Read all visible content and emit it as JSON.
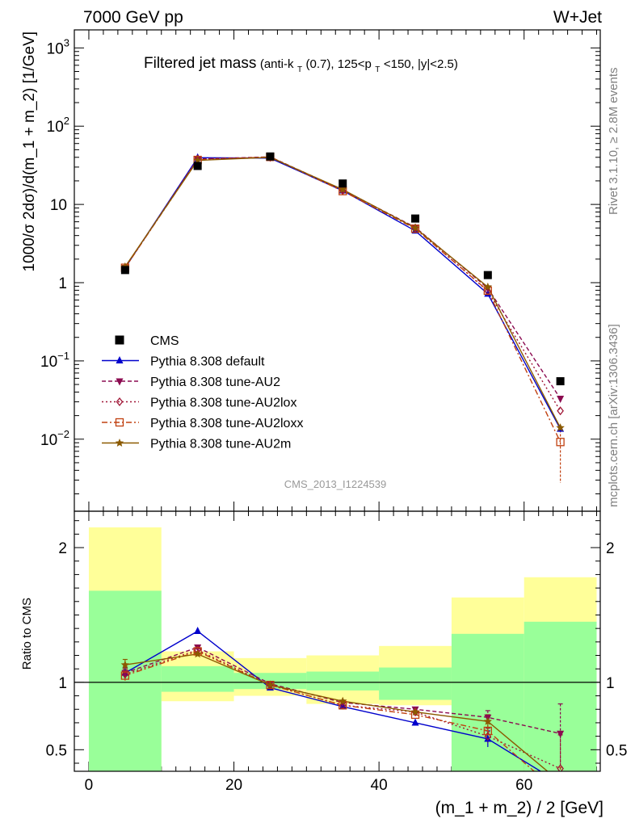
{
  "header": {
    "left": "7000 GeV pp",
    "right": "W+Jet",
    "side_rivet": "Rivet 3.1.10, ≥ 2.8M events",
    "side_mcplots": "mcplots.cern.ch [arXiv:1306.3436]"
  },
  "chart_data": {
    "type": "line",
    "title_main": "Filtered jet mass",
    "title_sub_parts": [
      "(anti-k",
      "T",
      "(0.7), 125<p",
      "T",
      "<150, |y|<2.5)"
    ],
    "analysis_label": "CMS_2013_I1224539",
    "xlabel": "(m_1 + m_2) / 2 [GeV]",
    "ylabel": "1000/σ 2dσ)/d(m_1 + m_2) [1/GeV]",
    "ratio_ylabel": "Ratio to CMS",
    "xlim": [
      -2,
      70.5
    ],
    "ylim": [
      0.0012,
      1700
    ],
    "ylog": true,
    "ratio_ylim": [
      0.34,
      2.27
    ],
    "x_ticks": [
      0,
      20,
      40,
      60
    ],
    "y_ticks": [
      {
        "value": 0.01,
        "base": "10",
        "exp": "−2"
      },
      {
        "value": 0.1,
        "base": "10",
        "exp": "−1"
      },
      {
        "value": 1,
        "base": "1",
        "exp": ""
      },
      {
        "value": 10,
        "base": "10",
        "exp": ""
      },
      {
        "value": 100,
        "base": "10",
        "exp": "2"
      },
      {
        "value": 1000,
        "base": "10",
        "exp": "3"
      }
    ],
    "ratio_ticks": [
      {
        "value": 0.5,
        "label": "0.5"
      },
      {
        "value": 1,
        "label": "1"
      },
      {
        "value": 2,
        "label": "2"
      }
    ],
    "x": [
      5,
      15,
      25,
      35,
      45,
      55,
      65
    ],
    "data": {
      "name": "CMS",
      "values": [
        1.45,
        31,
        41,
        18.5,
        6.6,
        1.25,
        0.055
      ],
      "band_edges": [
        0,
        10,
        20,
        30,
        40,
        50,
        60,
        70
      ],
      "stat_band": [
        [
          0.34,
          1.68
        ],
        [
          0.93,
          1.12
        ],
        [
          0.95,
          1.07
        ],
        [
          0.94,
          1.08
        ],
        [
          0.87,
          1.11
        ],
        [
          0.34,
          1.36
        ],
        [
          0.34,
          1.45
        ]
      ],
      "total_band": [
        [
          0.34,
          2.15
        ],
        [
          0.86,
          1.23
        ],
        [
          0.9,
          1.18
        ],
        [
          0.84,
          1.2
        ],
        [
          0.83,
          1.27
        ],
        [
          0.43,
          1.63
        ],
        [
          0.34,
          1.78
        ]
      ]
    },
    "series": [
      {
        "name": "Pythia 8.308 default",
        "color": "#0000cc",
        "dash": "",
        "marker": "triangle-up",
        "values": [
          1.55,
          39.5,
          39,
          15,
          4.6,
          0.72,
          0.0135
        ],
        "ratio": [
          1.07,
          1.38,
          0.96,
          0.82,
          0.7,
          0.58,
          0.25
        ],
        "ratio_err": [
          0.04,
          0,
          0,
          0,
          0,
          0.06,
          0
        ]
      },
      {
        "name": "Pythia 8.308 tune-AU2",
        "color": "#8b0a50",
        "dash": "5,3",
        "marker": "triangle-down",
        "values": [
          1.55,
          38,
          40.5,
          15.3,
          5.1,
          0.85,
          0.033
        ],
        "ratio": [
          1.07,
          1.26,
          0.99,
          0.85,
          0.8,
          0.74,
          0.62
        ],
        "ratio_err": [
          0.04,
          0,
          0,
          0,
          0,
          0.05,
          0.22
        ]
      },
      {
        "name": "Pythia 8.308 tune-AU2lox",
        "color": "#a01535",
        "dash": "2,3",
        "marker": "diamond",
        "values": [
          1.55,
          38,
          40,
          15,
          5.0,
          0.78,
          0.023
        ],
        "ratio": [
          1.06,
          1.24,
          0.98,
          0.83,
          0.78,
          0.6,
          0.36
        ],
        "ratio_err": [
          0.04,
          0,
          0,
          0,
          0,
          0.06,
          0.25
        ]
      },
      {
        "name": "Pythia 8.308 tune-AU2loxx",
        "color": "#c04010",
        "dash": "7,3,2,3",
        "marker": "square-open",
        "values": [
          1.55,
          37,
          40.5,
          14.8,
          4.9,
          0.79,
          0.0092
        ],
        "ratio": [
          1.05,
          1.23,
          0.98,
          0.83,
          0.76,
          0.64,
          0.17
        ],
        "ratio_err": [
          0.04,
          0,
          0,
          0,
          0,
          0.07,
          0.2
        ]
      },
      {
        "name": "Pythia 8.308 tune-AU2m",
        "color": "#8b5a00",
        "dash": "",
        "marker": "star",
        "values": [
          1.6,
          36.5,
          40,
          15.5,
          5.0,
          0.88,
          0.014
        ],
        "ratio": [
          1.13,
          1.21,
          0.98,
          0.86,
          0.78,
          0.71,
          0.26
        ],
        "ratio_err": [
          0.04,
          0,
          0,
          0,
          0,
          0.05,
          0
        ]
      }
    ]
  }
}
